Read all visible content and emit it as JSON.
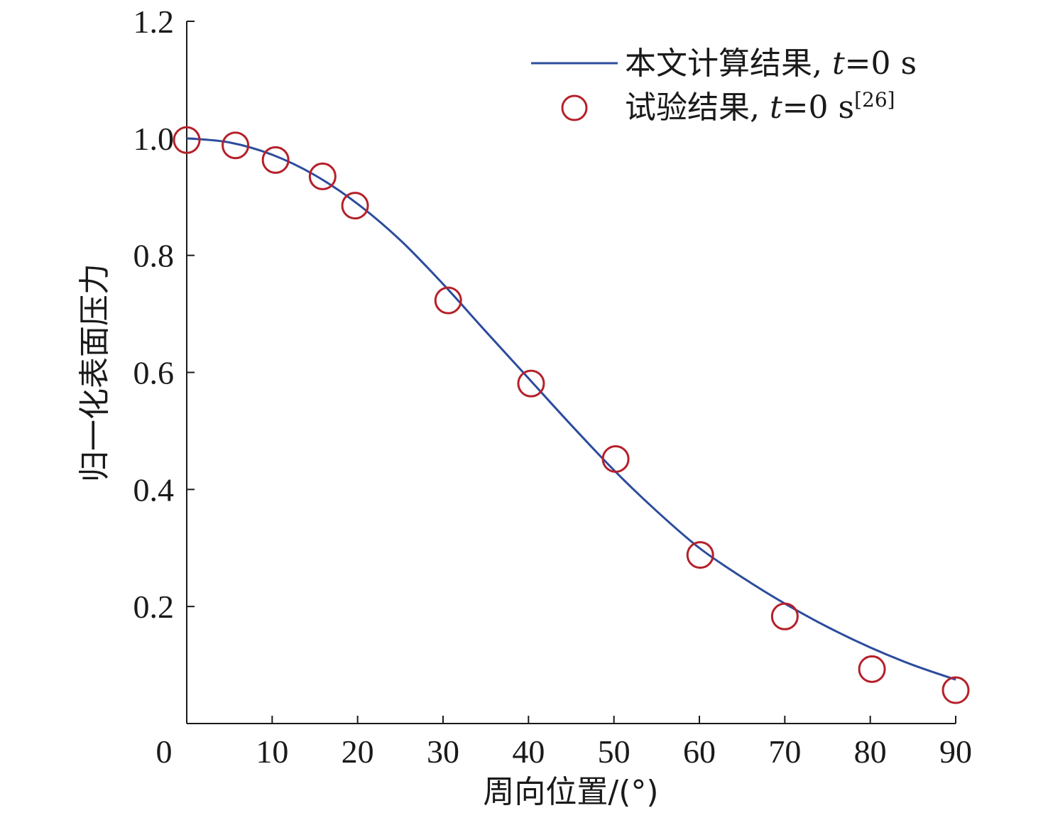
{
  "chart_data": {
    "type": "line",
    "xlabel": "周向位置/(°)",
    "ylabel": "归一化表面压力",
    "xlim": [
      0,
      90
    ],
    "ylim": [
      0,
      1.2
    ],
    "x_ticks": [
      0,
      10,
      20,
      30,
      40,
      50,
      60,
      70,
      80,
      90
    ],
    "x_tick_labels": [
      "0",
      "10",
      "20",
      "30",
      "40",
      "50",
      "60",
      "70",
      "80",
      "90"
    ],
    "y_ticks": [
      0.2,
      0.4,
      0.6,
      0.8,
      1.0,
      1.2
    ],
    "y_tick_labels": [
      "0.2",
      "0.4",
      "0.6",
      "0.8",
      "1.0",
      "1.2"
    ],
    "grid": false,
    "legend_position": "top-right",
    "series": [
      {
        "name": "本文计算结果, t=0 s",
        "legend_prefix": "本文计算结果, ",
        "legend_italic": "t",
        "legend_suffix": "=0 s",
        "legend_sup": "",
        "style": "line",
        "color": "#2c4c9c",
        "x": [
          0,
          5,
          10,
          15,
          20,
          25,
          30,
          35,
          40,
          45,
          50,
          55,
          60,
          65,
          70,
          75,
          80,
          85,
          90
        ],
        "y": [
          1.0,
          0.993,
          0.972,
          0.937,
          0.888,
          0.826,
          0.751,
          0.67,
          0.59,
          0.51,
          0.433,
          0.363,
          0.3,
          0.25,
          0.205,
          0.165,
          0.13,
          0.1,
          0.075
        ]
      },
      {
        "name": "试验结果, t=0 s[26]",
        "legend_prefix": "试验结果, ",
        "legend_italic": "t",
        "legend_suffix": "=0 s",
        "legend_sup": "[26]",
        "style": "marker-open-circle",
        "color": "#b5202a",
        "x": [
          0,
          5.7,
          10.4,
          15.9,
          19.7,
          30.6,
          40.3,
          50.2,
          60.1,
          70.0,
          80.2,
          90.0
        ],
        "y": [
          0.997,
          0.988,
          0.963,
          0.935,
          0.885,
          0.723,
          0.581,
          0.452,
          0.288,
          0.183,
          0.093,
          0.057
        ]
      }
    ]
  }
}
